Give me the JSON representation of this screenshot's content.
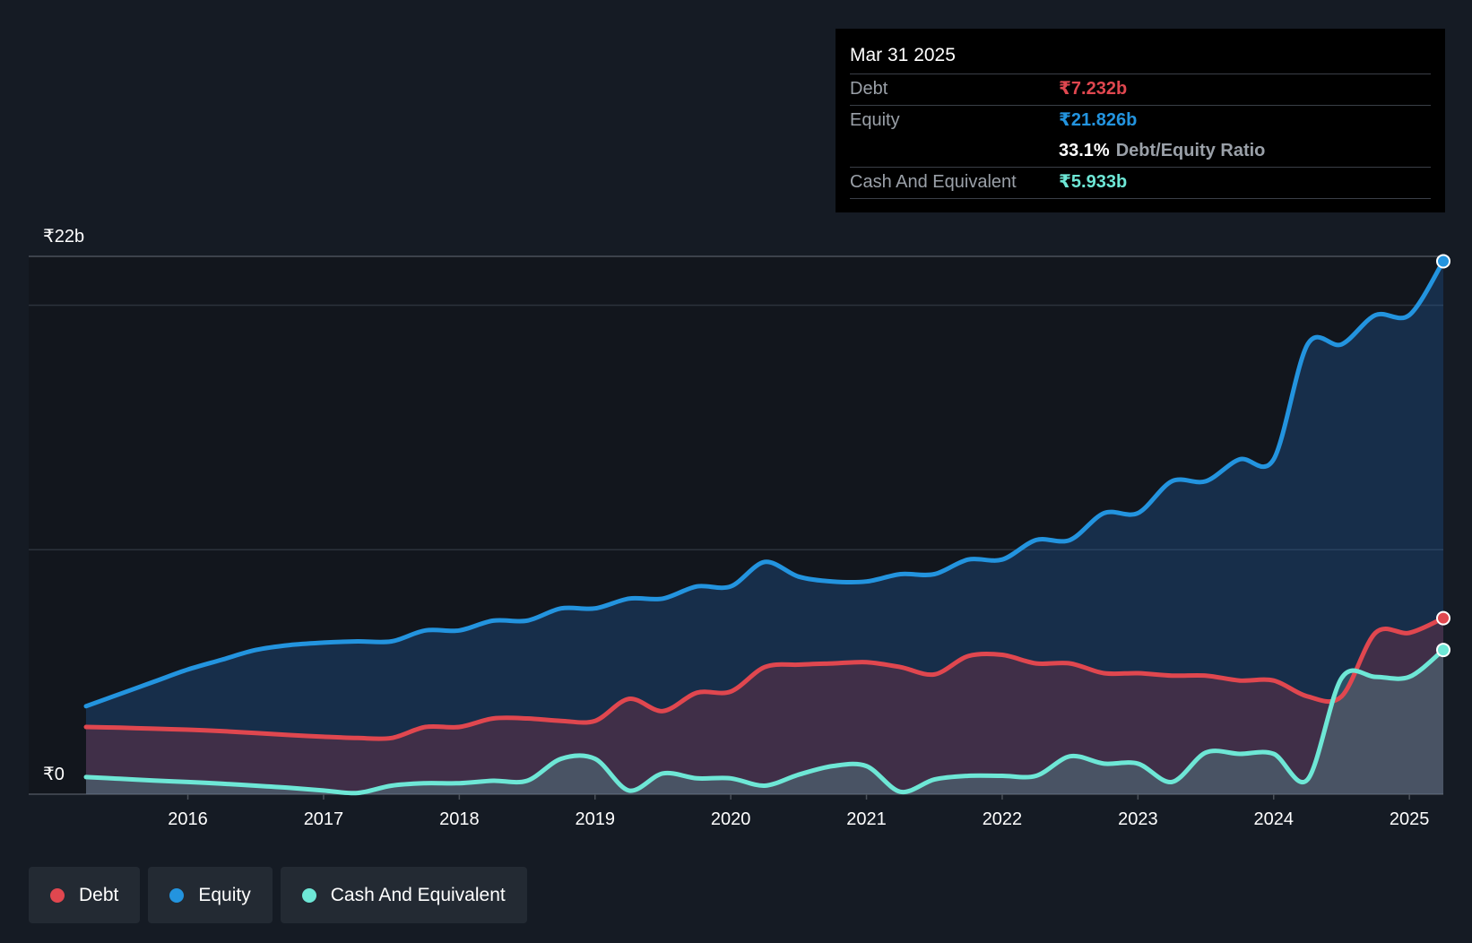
{
  "tooltip": {
    "date": "Mar 31 2025",
    "debt_label": "Debt",
    "debt_value": "₹7.232b",
    "equity_label": "Equity",
    "equity_value": "₹21.826b",
    "ratio_pct": "33.1%",
    "ratio_label": "Debt/Equity Ratio",
    "cash_label": "Cash And Equivalent",
    "cash_value": "₹5.933b"
  },
  "legend": {
    "debt": "Debt",
    "equity": "Equity",
    "cash": "Cash And Equivalent"
  },
  "colors": {
    "debt": "#e0474f",
    "equity": "#2394df",
    "cash": "#6ee7d6",
    "background": "#151b24"
  },
  "chart_data": {
    "type": "area",
    "title": "",
    "xlabel": "",
    "ylabel": "",
    "y_top_label": "₹22b",
    "y_bottom_label": "₹0",
    "ylim": [
      0,
      22
    ],
    "xlim": [
      2015.25,
      2025.25
    ],
    "x_ticks": [
      "2016",
      "2017",
      "2018",
      "2019",
      "2020",
      "2021",
      "2022",
      "2023",
      "2024",
      "2025"
    ],
    "x_tick_values": [
      2016,
      2017,
      2018,
      2019,
      2020,
      2021,
      2022,
      2023,
      2024,
      2025
    ],
    "series": [
      {
        "name": "Equity",
        "key": "equity",
        "x": [
          2015.25,
          2015.5,
          2015.75,
          2016.0,
          2016.25,
          2016.5,
          2016.75,
          2017.0,
          2017.25,
          2017.5,
          2017.75,
          2018.0,
          2018.25,
          2018.5,
          2018.75,
          2019.0,
          2019.25,
          2019.5,
          2019.75,
          2020.0,
          2020.25,
          2020.5,
          2020.75,
          2021.0,
          2021.25,
          2021.5,
          2021.75,
          2022.0,
          2022.25,
          2022.5,
          2022.75,
          2023.0,
          2023.25,
          2023.5,
          2023.75,
          2024.0,
          2024.25,
          2024.5,
          2024.75,
          2025.0,
          2025.25
        ],
        "values": [
          3.6,
          4.1,
          4.6,
          5.1,
          5.5,
          5.9,
          6.1,
          6.2,
          6.25,
          6.25,
          6.7,
          6.7,
          7.1,
          7.1,
          7.6,
          7.6,
          8.0,
          8.0,
          8.5,
          8.5,
          9.5,
          8.9,
          8.7,
          8.7,
          9.0,
          9.0,
          9.6,
          9.6,
          10.4,
          10.4,
          11.5,
          11.5,
          12.8,
          12.8,
          13.7,
          13.7,
          18.4,
          18.4,
          19.6,
          19.6,
          21.8
        ]
      },
      {
        "name": "Debt",
        "key": "debt",
        "x": [
          2015.25,
          2015.5,
          2015.75,
          2016.0,
          2016.25,
          2016.5,
          2016.75,
          2017.0,
          2017.25,
          2017.5,
          2017.75,
          2018.0,
          2018.25,
          2018.5,
          2018.75,
          2019.0,
          2019.25,
          2019.5,
          2019.75,
          2020.0,
          2020.25,
          2020.5,
          2020.75,
          2021.0,
          2021.25,
          2021.5,
          2021.75,
          2022.0,
          2022.25,
          2022.5,
          2022.75,
          2023.0,
          2023.25,
          2023.5,
          2023.75,
          2024.0,
          2024.25,
          2024.5,
          2024.75,
          2025.0,
          2025.25
        ],
        "values": [
          2.75,
          2.72,
          2.68,
          2.64,
          2.58,
          2.5,
          2.42,
          2.35,
          2.3,
          2.3,
          2.75,
          2.75,
          3.1,
          3.1,
          3.0,
          3.0,
          3.9,
          3.4,
          4.15,
          4.2,
          5.2,
          5.3,
          5.35,
          5.4,
          5.2,
          4.9,
          5.65,
          5.7,
          5.35,
          5.35,
          4.95,
          4.95,
          4.85,
          4.85,
          4.65,
          4.65,
          4.0,
          4.0,
          6.6,
          6.6,
          7.2
        ]
      },
      {
        "name": "Cash And Equivalent",
        "key": "cash",
        "x": [
          2015.25,
          2015.5,
          2015.75,
          2016.0,
          2016.25,
          2016.5,
          2016.75,
          2017.0,
          2017.25,
          2017.5,
          2017.75,
          2018.0,
          2018.25,
          2018.5,
          2018.75,
          2019.0,
          2019.25,
          2019.5,
          2019.75,
          2020.0,
          2020.25,
          2020.5,
          2020.75,
          2021.0,
          2021.25,
          2021.5,
          2021.75,
          2022.0,
          2022.25,
          2022.5,
          2022.75,
          2023.0,
          2023.25,
          2023.5,
          2023.75,
          2024.0,
          2024.25,
          2024.5,
          2024.75,
          2025.0,
          2025.25
        ],
        "values": [
          0.7,
          0.63,
          0.56,
          0.5,
          0.43,
          0.35,
          0.26,
          0.15,
          0.05,
          0.35,
          0.45,
          0.45,
          0.55,
          0.55,
          1.45,
          1.45,
          0.15,
          0.85,
          0.65,
          0.65,
          0.35,
          0.8,
          1.15,
          1.15,
          0.1,
          0.6,
          0.75,
          0.75,
          0.75,
          1.55,
          1.25,
          1.25,
          0.5,
          1.7,
          1.65,
          1.65,
          0.6,
          4.75,
          4.8,
          4.8,
          5.9
        ]
      }
    ],
    "highlight_date": "Mar 31 2025"
  }
}
